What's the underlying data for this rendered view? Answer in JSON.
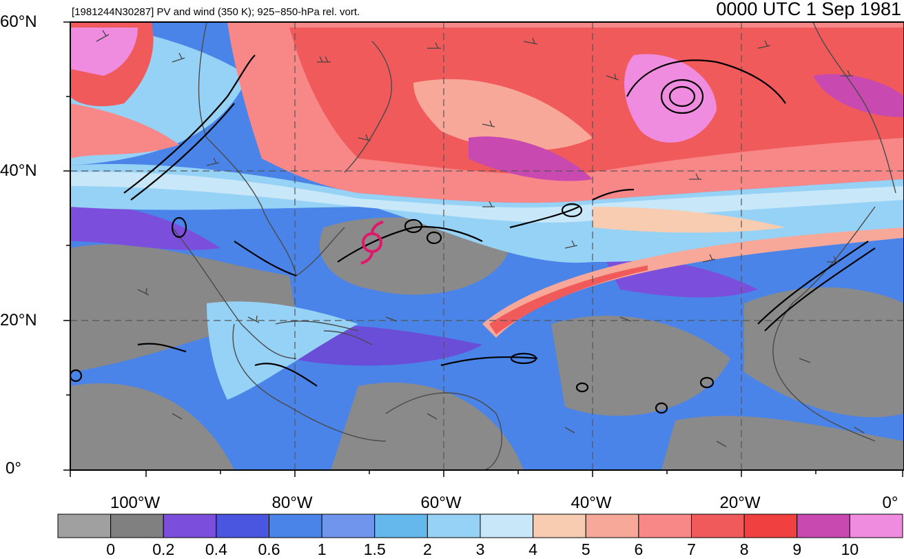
{
  "header": {
    "left_title": "[1981244N30287] PV and wind (350 K); 925−850-hPa rel. vort.",
    "right_title": "0000 UTC 1 Sep 1981"
  },
  "axes": {
    "lat_labels": [
      "60°N",
      "40°N",
      "20°N",
      "0°"
    ],
    "lon_labels": [
      "100°W",
      "80°W",
      "60°W",
      "40°W",
      "20°W",
      "0°"
    ]
  },
  "colorbar": {
    "colors": [
      "#a0a0a0",
      "#808080",
      "#7b4fdc",
      "#4a56e0",
      "#4a84e8",
      "#6f96ec",
      "#64b8ec",
      "#96d2f5",
      "#c8e8fa",
      "#f8ccb0",
      "#f8a898",
      "#f88888",
      "#f05a5a",
      "#f04040",
      "#c84ab0",
      "#f08ce0"
    ],
    "labels": [
      "0",
      "0.2",
      "0.4",
      "0.6",
      "1",
      "1.5",
      "2",
      "3",
      "4",
      "5",
      "6",
      "7",
      "8",
      "9",
      "10"
    ]
  },
  "map": {
    "storm_symbol": "tropical-cyclone-icon",
    "storm_color": "#e0186c"
  }
}
